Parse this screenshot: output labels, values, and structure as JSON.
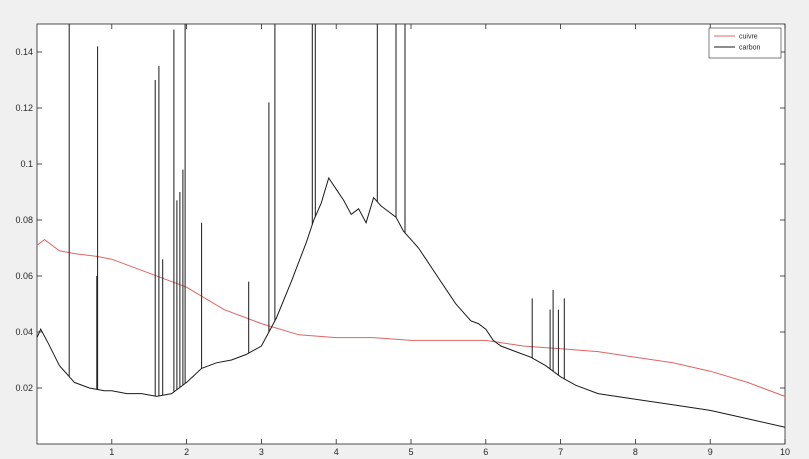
{
  "chart_data": {
    "type": "line",
    "title": "",
    "xlabel": "",
    "ylabel": "",
    "xlim": [
      0,
      10
    ],
    "ylim": [
      0,
      0.15
    ],
    "x_ticks": [
      1,
      2,
      3,
      4,
      5,
      6,
      7,
      8,
      9,
      10
    ],
    "y_ticks": [
      0.02,
      0.04,
      0.06,
      0.08,
      0.1,
      0.12,
      0.14
    ],
    "x_tick_labels": [
      "1",
      "2",
      "3",
      "4",
      "5",
      "6",
      "7",
      "8",
      "9",
      "10"
    ],
    "y_tick_labels": [
      "0.02",
      "0.04",
      "0.06",
      "0.08",
      "0.1",
      "0.12",
      "0.14"
    ],
    "grid": false,
    "legend_position": "top-right",
    "series": [
      {
        "name": "cuivre",
        "color": "#e06464",
        "x": [
          0.0,
          0.1,
          0.3,
          0.5,
          0.8,
          1.0,
          1.5,
          2.0,
          2.5,
          3.0,
          3.5,
          4.0,
          4.5,
          5.0,
          5.5,
          6.0,
          6.5,
          7.0,
          7.5,
          8.0,
          8.5,
          9.0,
          9.5,
          10.0
        ],
        "y": [
          0.071,
          0.073,
          0.069,
          0.068,
          0.067,
          0.066,
          0.061,
          0.056,
          0.048,
          0.043,
          0.039,
          0.038,
          0.038,
          0.037,
          0.037,
          0.037,
          0.035,
          0.034,
          0.033,
          0.031,
          0.029,
          0.026,
          0.022,
          0.017
        ]
      },
      {
        "name": "carbon",
        "color": "#1a1a1a",
        "x": [
          0.0,
          0.05,
          0.15,
          0.3,
          0.5,
          0.7,
          0.9,
          1.0,
          1.2,
          1.4,
          1.6,
          1.8,
          2.0,
          2.2,
          2.4,
          2.6,
          2.8,
          3.0,
          3.2,
          3.4,
          3.6,
          3.7,
          3.8,
          3.9,
          4.0,
          4.1,
          4.2,
          4.3,
          4.4,
          4.5,
          4.6,
          4.7,
          4.8,
          4.9,
          5.0,
          5.1,
          5.2,
          5.3,
          5.4,
          5.5,
          5.6,
          5.7,
          5.8,
          5.9,
          6.0,
          6.1,
          6.2,
          6.4,
          6.6,
          6.8,
          7.0,
          7.2,
          7.5,
          8.0,
          8.5,
          9.0,
          9.5,
          10.0
        ],
        "y": [
          0.038,
          0.041,
          0.036,
          0.028,
          0.022,
          0.02,
          0.019,
          0.019,
          0.018,
          0.018,
          0.017,
          0.018,
          0.022,
          0.027,
          0.029,
          0.03,
          0.032,
          0.035,
          0.045,
          0.058,
          0.072,
          0.08,
          0.086,
          0.095,
          0.091,
          0.087,
          0.082,
          0.084,
          0.079,
          0.088,
          0.085,
          0.083,
          0.081,
          0.076,
          0.073,
          0.07,
          0.066,
          0.062,
          0.058,
          0.054,
          0.05,
          0.047,
          0.044,
          0.043,
          0.041,
          0.037,
          0.035,
          0.033,
          0.031,
          0.028,
          0.024,
          0.021,
          0.018,
          0.016,
          0.014,
          0.012,
          0.009,
          0.006
        ]
      }
    ],
    "spikes": {
      "series": "carbon",
      "x": [
        0.43,
        0.8,
        0.81,
        1.58,
        1.63,
        1.68,
        1.83,
        1.87,
        1.91,
        1.95,
        1.98,
        2.2,
        2.83,
        3.1,
        3.18,
        3.68,
        3.72,
        4.55,
        4.8,
        4.92,
        6.62,
        6.86,
        6.9,
        6.97,
        7.05
      ],
      "y": [
        0.15,
        0.06,
        0.142,
        0.13,
        0.135,
        0.066,
        0.148,
        0.087,
        0.09,
        0.098,
        0.15,
        0.079,
        0.058,
        0.122,
        0.15,
        0.15,
        0.15,
        0.15,
        0.15,
        0.15,
        0.052,
        0.048,
        0.055,
        0.048,
        0.052
      ]
    }
  }
}
